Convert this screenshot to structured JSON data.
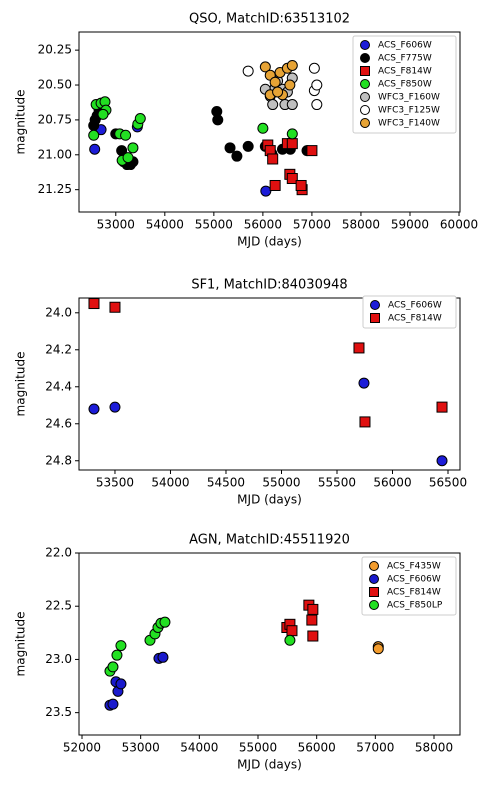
{
  "chart_data": [
    {
      "type": "scatter",
      "title": "QSO, MatchID:63513102",
      "x_label": "MJD (days)",
      "y_label": "magnitude",
      "xlim": [
        52250,
        60020
      ],
      "ylim": [
        20.12,
        21.41
      ],
      "invert_y": true,
      "legend": "upper right",
      "xticks": [
        53000,
        54000,
        55000,
        56000,
        57000,
        58000,
        59000,
        60000
      ],
      "yticks": [
        {
          "value": 20.25,
          "label": "20.25"
        },
        {
          "value": 20.5,
          "label": "20.50"
        },
        {
          "value": 20.75,
          "label": "20.75"
        },
        {
          "value": 21.0,
          "label": "21.00"
        },
        {
          "value": 21.25,
          "label": "21.25"
        }
      ],
      "series": [
        {
          "name": "ACS_F606W",
          "color": "#1c1cd8",
          "marker": "o",
          "x": [
            52570,
            52700,
            53440,
            56060
          ],
          "values": [
            20.96,
            20.82,
            20.8,
            21.26
          ]
        },
        {
          "name": "ACS_F775W",
          "color": "#000000",
          "marker": "o",
          "x": [
            52550,
            52580,
            52620,
            52660,
            52720,
            52750,
            53000,
            53120,
            53160,
            53230,
            53300,
            53350,
            55060,
            55080,
            55330,
            55470,
            55700,
            56050,
            56180,
            56400,
            56560,
            56900
          ],
          "values": [
            20.79,
            20.75,
            20.72,
            20.68,
            20.66,
            20.69,
            20.85,
            20.97,
            21.05,
            21.07,
            21.07,
            21.05,
            20.69,
            20.75,
            20.95,
            21.01,
            20.94,
            20.94,
            20.99,
            20.96,
            20.96,
            20.97
          ]
        },
        {
          "name": "ACS_F814W",
          "color": "#e01010",
          "marker": "s",
          "x": [
            56100,
            56150,
            56200,
            56500,
            56600,
            56550,
            56600,
            56250,
            56800,
            56780,
            57000
          ],
          "values": [
            20.93,
            20.97,
            21.03,
            20.92,
            20.92,
            21.14,
            21.17,
            21.22,
            21.25,
            21.22,
            20.97
          ]
        },
        {
          "name": "ACS_F850W",
          "color": "#22e022",
          "marker": "o",
          "x": [
            52550,
            52600,
            52700,
            52780,
            52800,
            52740,
            53080,
            53200,
            53130,
            53250,
            53350,
            53450,
            53500,
            56000,
            56600
          ],
          "values": [
            20.86,
            20.64,
            20.63,
            20.62,
            20.68,
            20.71,
            20.85,
            20.86,
            21.04,
            21.02,
            20.95,
            20.78,
            20.74,
            20.81,
            20.85
          ]
        },
        {
          "name": "WFC3_F160W",
          "color": "#c0c0c0",
          "marker": "o",
          "x": [
            56050,
            56150,
            56250,
            56400,
            56500,
            56600,
            56200,
            56450,
            56600,
            56300
          ],
          "values": [
            20.53,
            20.58,
            20.52,
            20.53,
            20.55,
            20.45,
            20.64,
            20.64,
            20.64,
            20.47
          ]
        },
        {
          "name": "WFC3_F125W",
          "color": "#ffffff",
          "marker": "o",
          "x": [
            55700,
            57050,
            57050,
            57100,
            57100
          ],
          "values": [
            20.4,
            20.38,
            20.54,
            20.5,
            20.64
          ]
        },
        {
          "name": "WFC3_F140W",
          "color": "#e6a335",
          "marker": "o",
          "x": [
            56050,
            56150,
            56250,
            56350,
            56500,
            56550,
            56150,
            56400,
            56600,
            56300
          ],
          "values": [
            20.37,
            20.43,
            20.48,
            20.41,
            20.38,
            20.5,
            20.57,
            20.57,
            20.36,
            20.55
          ]
        }
      ]
    },
    {
      "type": "scatter",
      "title": "SF1, MatchID:84030948",
      "x_label": "MJD (days)",
      "y_label": "magnitude",
      "xlim": [
        53176,
        56608
      ],
      "ylim": [
        23.92,
        24.85
      ],
      "invert_y": true,
      "legend": "upper right",
      "xticks": [
        53500,
        54000,
        54500,
        55000,
        55500,
        56000,
        56500
      ],
      "yticks": [
        {
          "value": 24.0,
          "label": "24.0"
        },
        24.2,
        24.4,
        24.6,
        24.8
      ],
      "series": [
        {
          "name": "ACS_F606W",
          "color": "#1c1cd8",
          "marker": "o",
          "x": [
            53311,
            53500,
            55743,
            56446
          ],
          "values": [
            24.52,
            24.51,
            24.38,
            24.8
          ]
        },
        {
          "name": "ACS_F814W",
          "color": "#e01010",
          "marker": "s",
          "x": [
            53311,
            53500,
            55698,
            55752,
            56446
          ],
          "values": [
            23.95,
            23.97,
            24.19,
            24.59,
            24.51
          ]
        }
      ]
    },
    {
      "type": "scatter",
      "title": "AGN, MatchID:45511920",
      "x_label": "MJD (days)",
      "y_label": "magnitude",
      "xlim": [
        51949,
        58443
      ],
      "ylim": [
        22.0,
        23.71
      ],
      "invert_y": true,
      "legend": "upper right",
      "xticks": [
        52000,
        53000,
        54000,
        55000,
        56000,
        57000,
        58000
      ],
      "yticks": [
        {
          "value": 22.0,
          "label": "22.0"
        },
        22.5,
        {
          "value": 23.0,
          "label": "23.0"
        },
        23.5
      ],
      "series": [
        {
          "name": "ACS_F435W",
          "color": "#f39c2d",
          "marker": "o",
          "x": [
            57050,
            57050
          ],
          "values": [
            22.88,
            22.9
          ]
        },
        {
          "name": "ACS_F606W",
          "color": "#1a1acc",
          "marker": "o",
          "x": [
            52477,
            52528,
            52613,
            52579,
            52664,
            53312,
            53380
          ],
          "values": [
            23.43,
            23.42,
            23.3,
            23.21,
            23.23,
            22.99,
            22.98
          ]
        },
        {
          "name": "ACS_F814W",
          "color": "#e01010",
          "marker": "s",
          "x": [
            55492,
            55544,
            55579,
            55867,
            55935,
            55918,
            55935
          ],
          "values": [
            22.7,
            22.67,
            22.73,
            22.49,
            22.53,
            22.63,
            22.78
          ]
        },
        {
          "name": "ACS_F850LP",
          "color": "#22e022",
          "marker": "o",
          "x": [
            52477,
            52528,
            52596,
            52664,
            53159,
            53244,
            53295,
            53346,
            53414,
            55544
          ],
          "values": [
            23.11,
            23.07,
            22.96,
            22.87,
            22.82,
            22.76,
            22.7,
            22.66,
            22.65,
            22.82
          ]
        }
      ]
    }
  ]
}
